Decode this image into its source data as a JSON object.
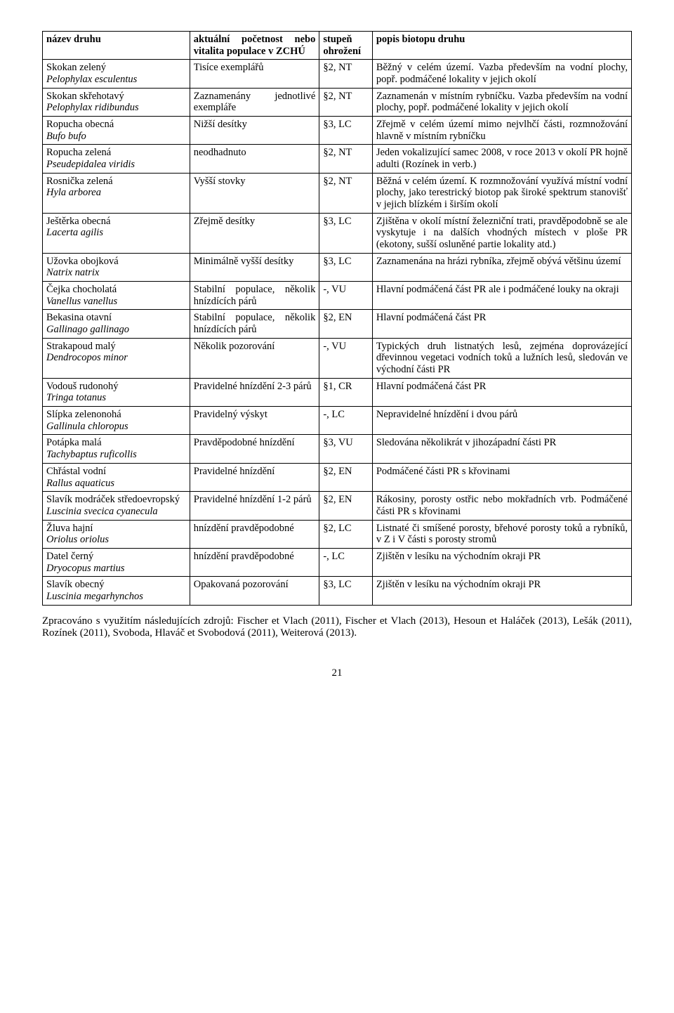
{
  "headers": {
    "name": "název druhu",
    "count": "aktuální početnost nebo vitalita populace v ZCHÚ",
    "threat": "stupeň ohrožení",
    "bio": "popis biotopu druhu"
  },
  "rows": [
    {
      "name_cz": "Skokan zelený",
      "name_lat": "Pelophylax esculentus",
      "count": "Tisíce exemplářů",
      "threat": "§2, NT",
      "bio": "Běžný v celém území. Vazba především na vodní plochy, popř. podmáčené lokality v jejich okolí"
    },
    {
      "name_cz": "Skokan skřehotavý",
      "name_lat": "Pelophylax ridibundus",
      "count": "Zaznamenány jednotlivé exempláře",
      "threat": "§2, NT",
      "bio": "Zaznamenán v místním rybníčku. Vazba především na vodní plochy, popř. podmáčené lokality v jejich okolí"
    },
    {
      "name_cz": "Ropucha obecná",
      "name_lat": "Bufo bufo",
      "count": "Nižší desítky",
      "threat": "§3, LC",
      "bio": "Zřejmě v celém území mimo nejvlhčí části, rozmnožování hlavně v místním rybníčku"
    },
    {
      "name_cz": "Ropucha zelená",
      "name_lat": "Pseudepidalea viridis",
      "count": "neodhadnuto",
      "threat": "§2, NT",
      "bio": "Jeden vokalizující samec 2008, v roce 2013 v okolí PR hojně adulti (Rozínek in verb.)"
    },
    {
      "name_cz": "Rosnička zelená",
      "name_lat": "Hyla arborea",
      "count": "Vyšší stovky",
      "threat": "§2, NT",
      "bio": "Běžná v celém území. K rozmnožování využívá místní vodní plochy, jako terestrický biotop pak široké spektrum stanovišť v jejich blízkém i širším okolí"
    },
    {
      "name_cz": "Ještěrka obecná",
      "name_lat": "Lacerta agilis",
      "count": "Zřejmě desítky",
      "threat": "§3, LC",
      "bio": "Zjištěna v okolí místní železniční trati, pravděpodobně se ale vyskytuje i na dalších vhodných místech v ploše PR (ekotony, sušší osluněné partie lokality atd.)"
    },
    {
      "name_cz": "Užovka obojková",
      "name_lat": "Natrix natrix",
      "count": "Minimálně vyšší desítky",
      "threat": "§3, LC",
      "bio": "Zaznamenána na hrázi rybníka, zřejmě obývá většinu území"
    },
    {
      "name_cz": "Čejka chocholatá",
      "name_lat": "Vanellus vanellus",
      "count": "Stabilní populace, několik hnízdících párů",
      "threat": "-, VU",
      "bio": "Hlavní podmáčená část PR ale i podmáčené louky na okraji"
    },
    {
      "name_cz": "Bekasina otavní",
      "name_lat": "Gallinago gallinago",
      "count": "Stabilní populace, několik hnízdících párů",
      "threat": "§2, EN",
      "bio": "Hlavní podmáčená část PR"
    },
    {
      "name_cz": "Strakapoud malý",
      "name_lat": "Dendrocopos minor",
      "count": "Několik pozorování",
      "threat": "-, VU",
      "bio": "Typických druh listnatých lesů, zejména doprovázející dřevinnou vegetaci vodních toků a lužních lesů, sledován ve východní části PR"
    },
    {
      "name_cz": "Vodouš rudonohý",
      "name_lat": "Tringa totanus",
      "count": "Pravidelné hnízdění 2-3 párů",
      "threat": "§1, CR",
      "bio": "Hlavní podmáčená část PR"
    },
    {
      "name_cz": "Slípka zelenonohá",
      "name_lat": "Gallinula chloropus",
      "count": "Pravidelný výskyt",
      "threat": "-, LC",
      "bio": "Nepravidelné hnízdění i dvou párů"
    },
    {
      "name_cz": "Potápka malá",
      "name_lat": "Tachybaptus ruficollis",
      "count": "Pravděpodobné hnízdění",
      "threat": "§3, VU",
      "bio": "Sledována několikrát v jihozápadní části PR"
    },
    {
      "name_cz": "Chřástal vodní",
      "name_lat": "Rallus aquaticus",
      "count": "Pravidelné hnízdění",
      "threat": "§2, EN",
      "bio": "Podmáčené části PR s křovinami"
    },
    {
      "name_cz": "Slavík modráček středoevropský",
      "name_lat": "Luscinia svecica cyanecula",
      "count": "Pravidelné hnízdění 1-2 párů",
      "threat": "§2, EN",
      "bio": "Rákosiny, porosty ostřic nebo mokřadních vrb. Podmáčené části PR s křovinami"
    },
    {
      "name_cz": "Žluva hajní",
      "name_lat": "Oriolus oriolus",
      "count": "hnízdění pravděpodobné",
      "threat": "§2, LC",
      "bio": "Listnaté či smíšené porosty, břehové porosty toků a rybníků, v Z i V části s porosty stromů"
    },
    {
      "name_cz": "Datel černý",
      "name_lat": "Dryocopus martius",
      "count": "hnízdění pravděpodobné",
      "threat": "-, LC",
      "bio": "Zjištěn v lesíku na východním okraji PR"
    },
    {
      "name_cz": "Slavík obecný",
      "name_lat": "Luscinia megarhynchos",
      "count": "Opakovaná pozorování",
      "threat": "§3, LC",
      "bio": "Zjištěn v lesíku na východním okraji PR"
    }
  ],
  "afterpara": "Zpracováno s využitím následujících zdrojů: Fischer et Vlach (2011), Fischer et Vlach (2013), Hesoun et Haláček (2013), Lešák (2011), Rozínek (2011), Svoboda, Hlaváč et Svobodová  (2011), Weiterová (2013).",
  "pagenum": "21"
}
